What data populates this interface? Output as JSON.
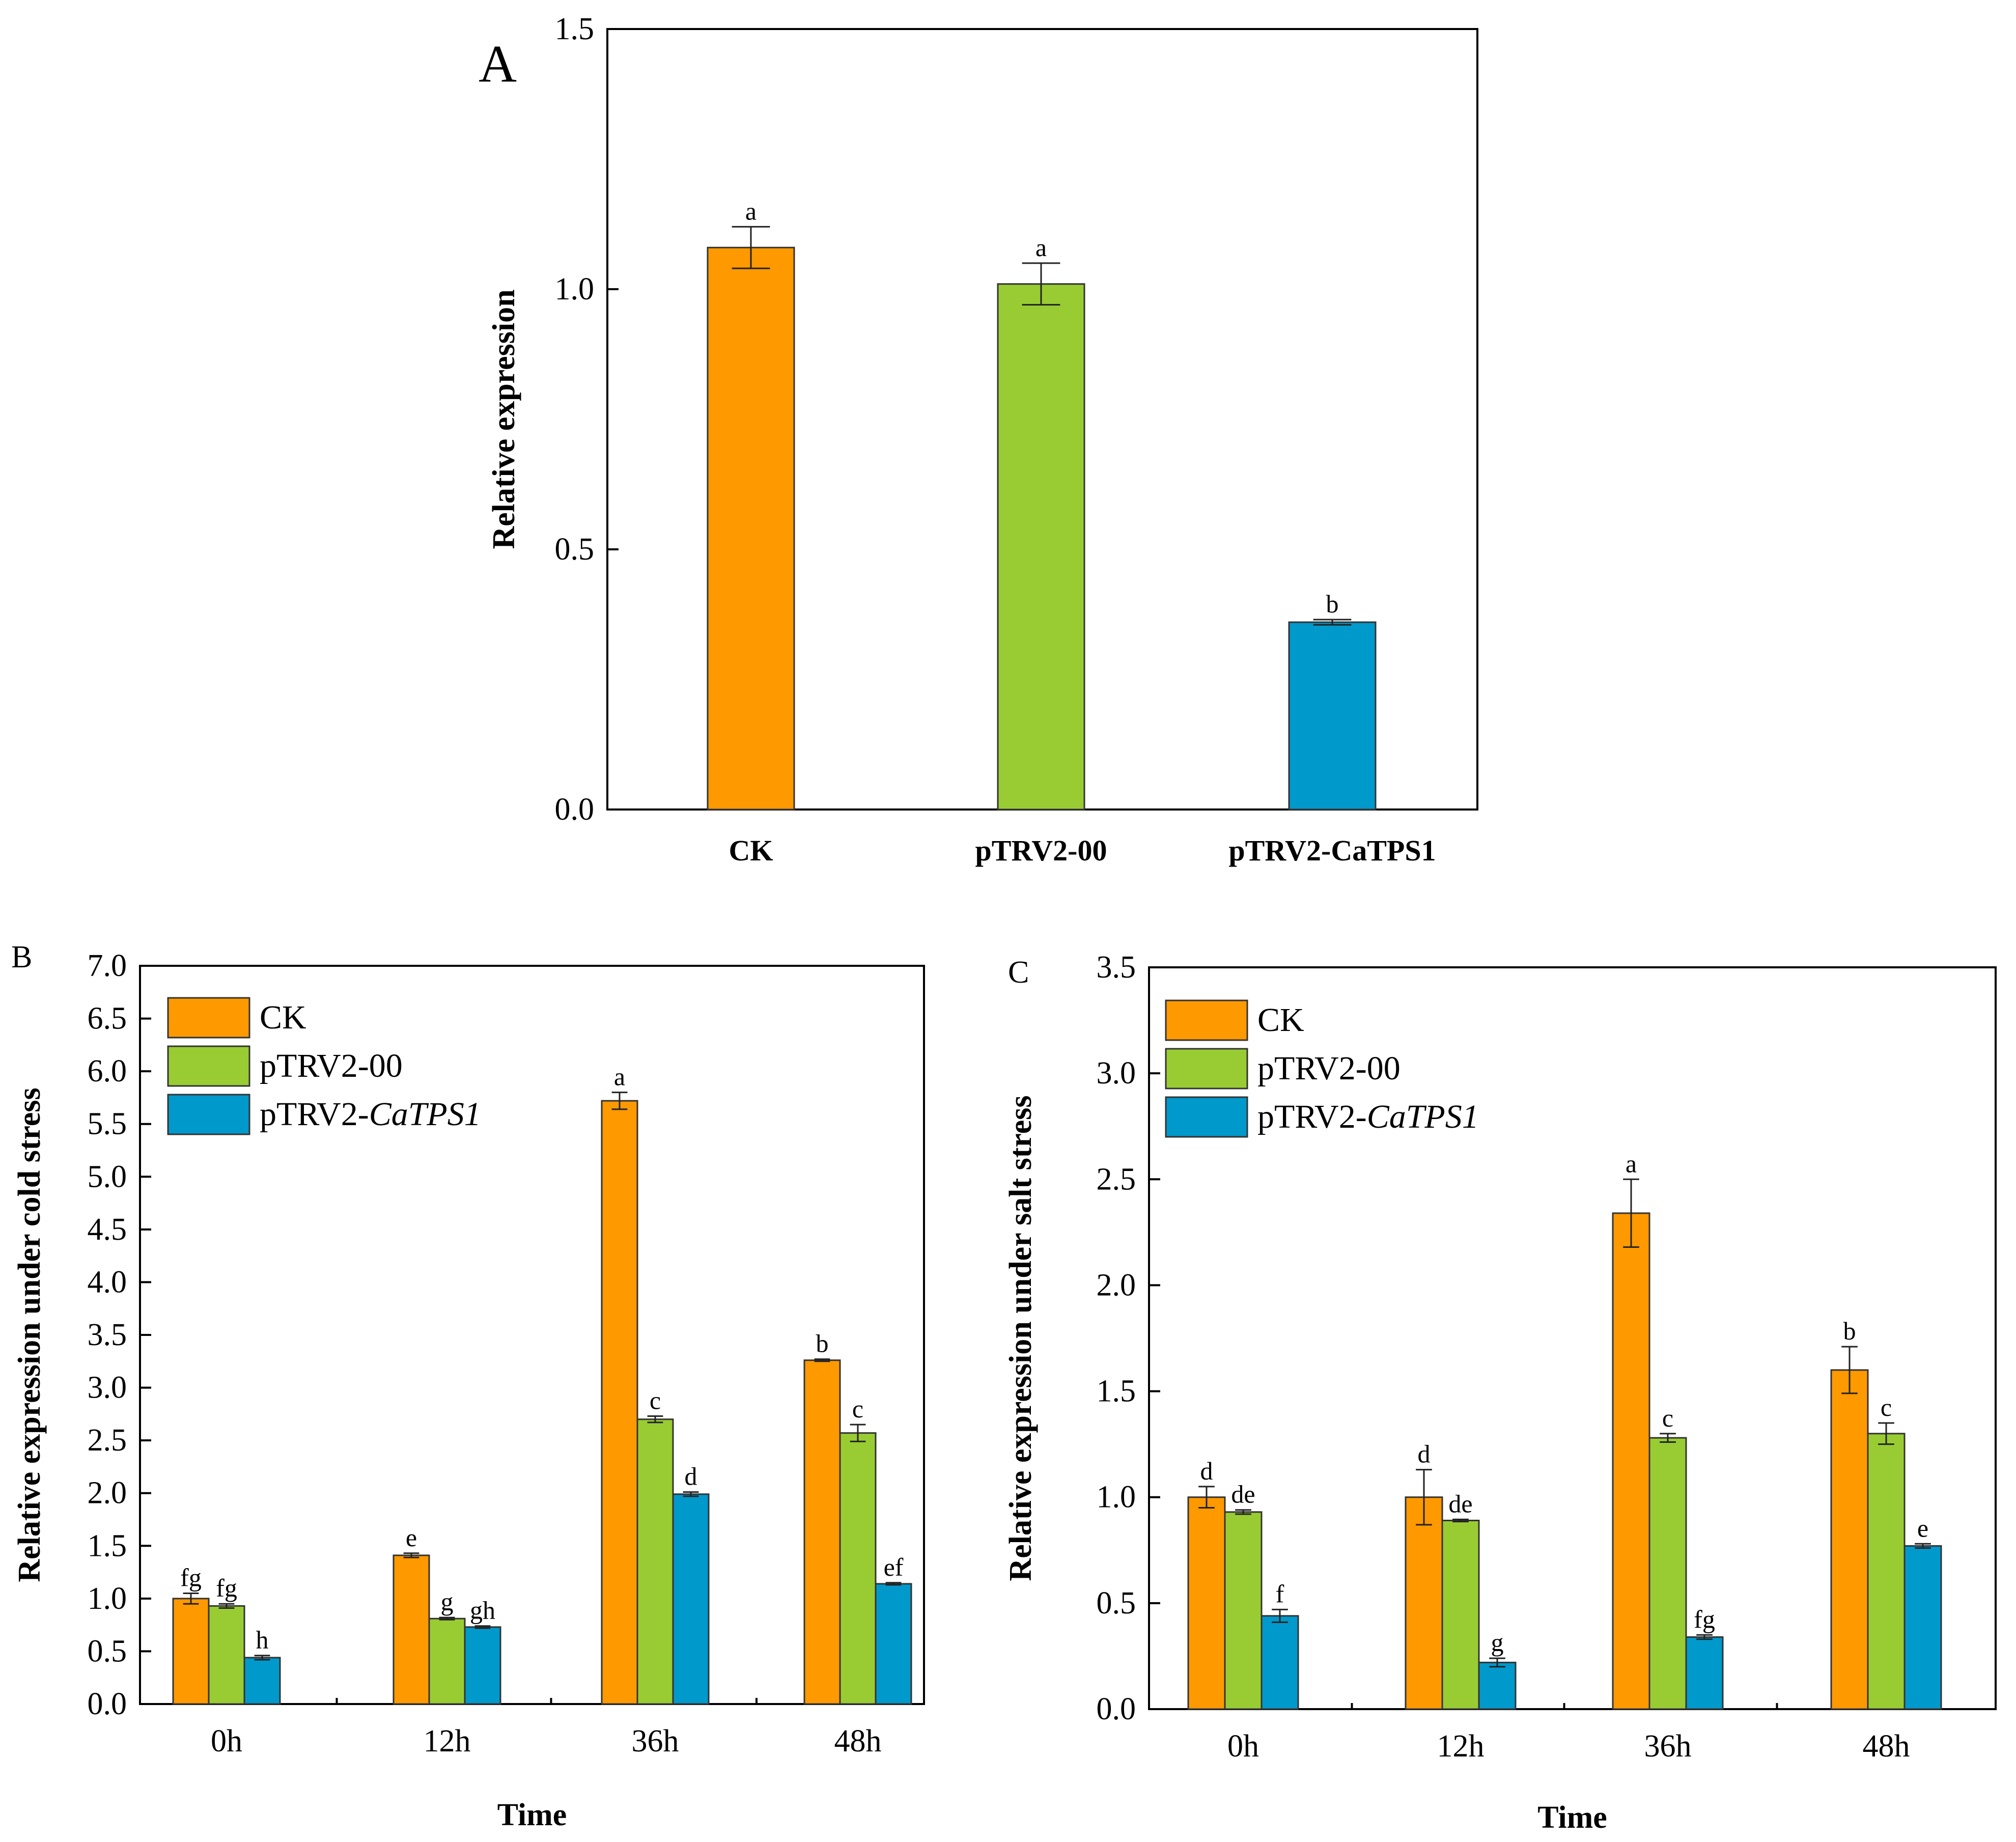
{
  "colors": {
    "CK": "#FF9900",
    "pTRV2-00": "#99CC33",
    "pTRV2-CaTPS1": "#0099CC"
  },
  "chart_data": [
    {
      "panel": "A",
      "type": "bar",
      "title": "",
      "xlabel": "",
      "ylabel": "Relative expression",
      "ylim": [
        0,
        1.5
      ],
      "yticks": [
        "0.0",
        "0.5",
        "1.0",
        "1.5"
      ],
      "categories": [
        "CK",
        "pTRV2-00",
        "pTRV2-CaTPS1"
      ],
      "series": [
        {
          "values": [
            1.08,
            1.01,
            0.36
          ],
          "errors": [
            0.04,
            0.04,
            0.005
          ],
          "labels": [
            "a",
            "a",
            "b"
          ],
          "color_keys": [
            "CK",
            "pTRV2-00",
            "pTRV2-CaTPS1"
          ]
        }
      ],
      "legend": null,
      "grid": false
    },
    {
      "panel": "B",
      "type": "bar",
      "title": "",
      "xlabel": "Time",
      "ylabel": "Relative expression under cold stress",
      "ylim": [
        0,
        7
      ],
      "yticks": [
        "0.0",
        "0.5",
        "1.0",
        "1.5",
        "2.0",
        "2.5",
        "3.0",
        "3.5",
        "4.0",
        "4.5",
        "5.0",
        "5.5",
        "6.0",
        "6.5",
        "7.0"
      ],
      "categories": [
        "0h",
        "12h",
        "36h",
        "48h"
      ],
      "series": [
        {
          "name": "CK",
          "color_key": "CK",
          "values": [
            1.0,
            1.41,
            5.72,
            3.26
          ],
          "errors": [
            0.05,
            0.02,
            0.08,
            0.01
          ],
          "labels": [
            "fg",
            "e",
            "a",
            "b"
          ]
        },
        {
          "name": "pTRV2-00",
          "color_key": "pTRV2-00",
          "values": [
            0.93,
            0.81,
            2.7,
            2.57
          ],
          "errors": [
            0.02,
            0.01,
            0.03,
            0.08
          ],
          "labels": [
            "fg",
            "g",
            "c",
            "c"
          ]
        },
        {
          "name": "pTRV2-",
          "name_italic": "CaTPS1",
          "color_key": "pTRV2-CaTPS1",
          "values": [
            0.44,
            0.73,
            1.99,
            1.14
          ],
          "errors": [
            0.02,
            0.01,
            0.02,
            0.01
          ],
          "labels": [
            "h",
            "gh",
            "d",
            "ef"
          ]
        }
      ],
      "legend": "top-left",
      "grid": false
    },
    {
      "panel": "C",
      "type": "bar",
      "title": "",
      "xlabel": "Time",
      "ylabel": "Relative expression under salt stress",
      "ylim": [
        0,
        3.5
      ],
      "yticks": [
        "0.0",
        "0.5",
        "1.0",
        "1.5",
        "2.0",
        "2.5",
        "3.0",
        "3.5"
      ],
      "categories": [
        "0h",
        "12h",
        "36h",
        "48h"
      ],
      "series": [
        {
          "name": "CK",
          "color_key": "CK",
          "values": [
            1.0,
            1.0,
            2.34,
            1.6
          ],
          "errors": [
            0.05,
            0.13,
            0.16,
            0.11
          ],
          "labels": [
            "d",
            "d",
            "a",
            "b"
          ]
        },
        {
          "name": "pTRV2-00",
          "color_key": "pTRV2-00",
          "values": [
            0.93,
            0.89,
            1.28,
            1.3
          ],
          "errors": [
            0.01,
            0.005,
            0.02,
            0.05
          ],
          "labels": [
            "de",
            "de",
            "c",
            "c"
          ]
        },
        {
          "name": "pTRV2-",
          "name_italic": "CaTPS1",
          "color_key": "pTRV2-CaTPS1",
          "values": [
            0.44,
            0.22,
            0.34,
            0.77
          ],
          "errors": [
            0.03,
            0.02,
            0.01,
            0.01
          ],
          "labels": [
            "f",
            "g",
            "fg",
            "e"
          ]
        }
      ],
      "legend": "top-left",
      "grid": false
    }
  ]
}
